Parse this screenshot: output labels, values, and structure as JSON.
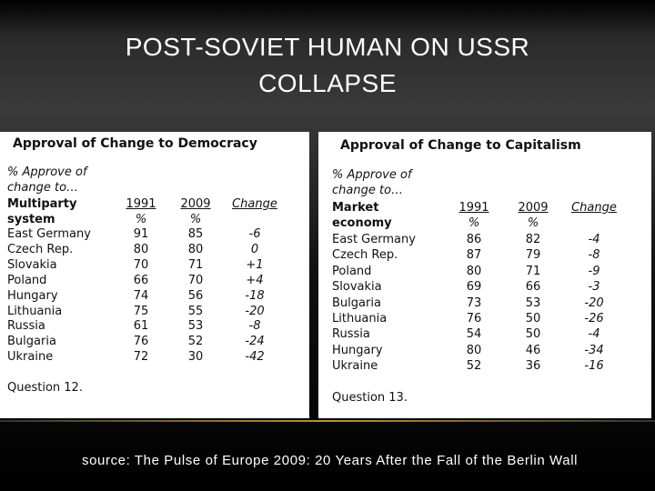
{
  "title": "POST-SOVIET HUMAN ON USSR COLLAPSE",
  "tables": [
    {
      "title": "Approval of Change to Democracy",
      "intro": [
        "% Approve of",
        "change to…"
      ],
      "row_header": [
        "Multiparty",
        "system"
      ],
      "columns": [
        {
          "year": "1991",
          "unit": "%"
        },
        {
          "year": "2009",
          "unit": "%"
        }
      ],
      "change_header": "Change",
      "rows": [
        [
          "East Germany",
          "91",
          "85",
          "-6"
        ],
        [
          "Czech Rep.",
          "80",
          "80",
          "0"
        ],
        [
          "Slovakia",
          "70",
          "71",
          "+1"
        ],
        [
          "Poland",
          "66",
          "70",
          "+4"
        ],
        [
          "Hungary",
          "74",
          "56",
          "-18"
        ],
        [
          "Lithuania",
          "75",
          "55",
          "-20"
        ],
        [
          "Russia",
          "61",
          "53",
          "-8"
        ],
        [
          "Bulgaria",
          "76",
          "52",
          "-24"
        ],
        [
          "Ukraine",
          "72",
          "30",
          "-42"
        ]
      ],
      "question": "Question 12."
    },
    {
      "title": "Approval of Change to Capitalism",
      "intro": [
        "% Approve of",
        "change to…"
      ],
      "row_header": [
        "Market",
        "economy"
      ],
      "columns": [
        {
          "year": "1991",
          "unit": "%"
        },
        {
          "year": "2009",
          "unit": "%"
        }
      ],
      "change_header": "Change",
      "rows": [
        [
          "East Germany",
          "86",
          "82",
          "-4"
        ],
        [
          "Czech Rep.",
          "87",
          "79",
          "-8"
        ],
        [
          "Poland",
          "80",
          "71",
          "-9"
        ],
        [
          "Slovakia",
          "69",
          "66",
          "-3"
        ],
        [
          "Bulgaria",
          "73",
          "53",
          "-20"
        ],
        [
          "Lithuania",
          "76",
          "50",
          "-26"
        ],
        [
          "Russia",
          "54",
          "50",
          "-4"
        ],
        [
          "Hungary",
          "80",
          "46",
          "-34"
        ],
        [
          "Ukraine",
          "52",
          "36",
          "-16"
        ]
      ],
      "question": "Question 13."
    }
  ],
  "source": "source: The Pulse of Europe 2009: 20 Years After the Fall of the Berlin Wall"
}
